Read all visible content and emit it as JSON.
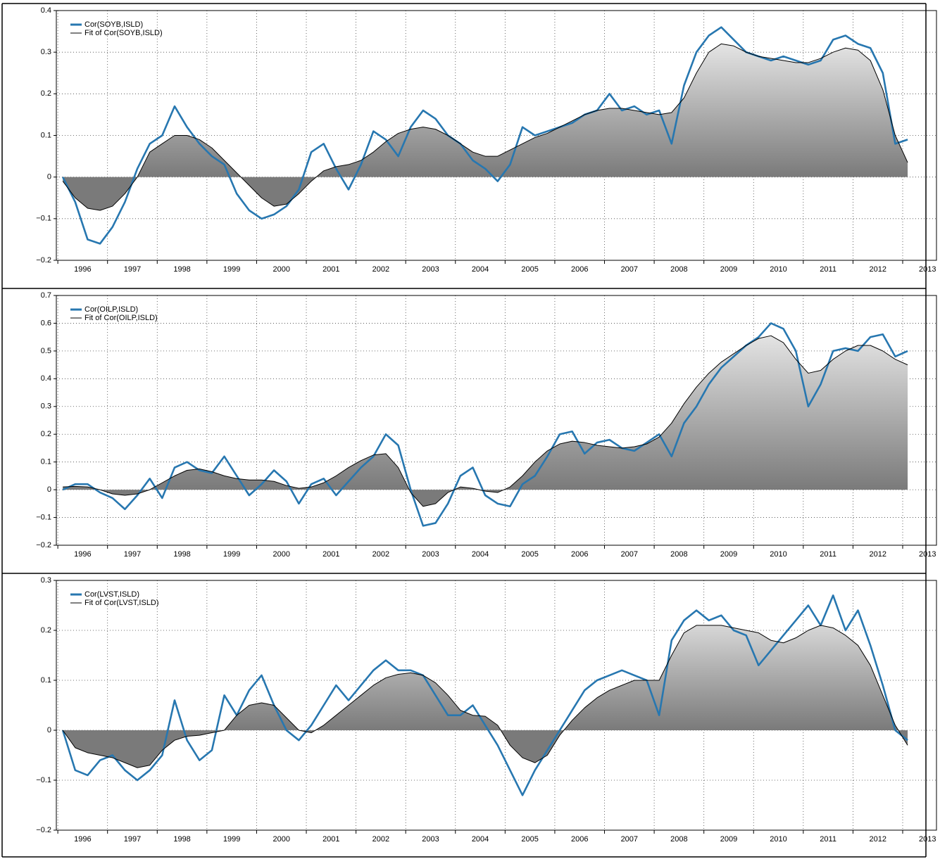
{
  "chart_data": [
    {
      "type": "line",
      "x": [
        1996.1,
        1996.35,
        1996.6,
        1996.85,
        1997.1,
        1997.35,
        1997.6,
        1997.85,
        1998.1,
        1998.35,
        1998.6,
        1998.85,
        1999.1,
        1999.35,
        1999.6,
        1999.85,
        2000.1,
        2000.35,
        2000.6,
        2000.85,
        2001.1,
        2001.35,
        2001.6,
        2001.85,
        2002.1,
        2002.35,
        2002.6,
        2002.85,
        2003.1,
        2003.35,
        2003.6,
        2003.85,
        2004.1,
        2004.35,
        2004.6,
        2004.85,
        2005.1,
        2005.35,
        2005.6,
        2005.85,
        2006.1,
        2006.35,
        2006.6,
        2006.85,
        2007.1,
        2007.35,
        2007.6,
        2007.85,
        2008.1,
        2008.35,
        2008.6,
        2008.85,
        2009.1,
        2009.35,
        2009.6,
        2009.85,
        2010.1,
        2010.35,
        2010.6,
        2010.85,
        2011.1,
        2011.35,
        2011.6,
        2011.85,
        2012.1,
        2012.35,
        2012.6,
        2012.85,
        2013.1
      ],
      "series": [
        {
          "name": "Cor(SOYB,ISLD)",
          "color": "#2777b0",
          "values": [
            0.0,
            -0.06,
            -0.15,
            -0.16,
            -0.12,
            -0.06,
            0.02,
            0.08,
            0.1,
            0.17,
            0.12,
            0.08,
            0.05,
            0.03,
            -0.04,
            -0.08,
            -0.1,
            -0.09,
            -0.07,
            -0.03,
            0.06,
            0.08,
            0.02,
            -0.03,
            0.03,
            0.11,
            0.09,
            0.05,
            0.12,
            0.16,
            0.14,
            0.1,
            0.08,
            0.04,
            0.02,
            -0.01,
            0.03,
            0.12,
            0.1,
            0.11,
            0.12,
            0.13,
            0.15,
            0.16,
            0.2,
            0.16,
            0.17,
            0.15,
            0.16,
            0.08,
            0.22,
            0.3,
            0.34,
            0.36,
            0.33,
            0.3,
            0.29,
            0.28,
            0.29,
            0.28,
            0.27,
            0.28,
            0.33,
            0.34,
            0.32,
            0.31,
            0.25,
            0.08,
            0.09
          ]
        },
        {
          "name": "Fit of Cor(SOYB,ISLD)",
          "color": "#000000",
          "fill": true,
          "values": [
            -0.01,
            -0.05,
            -0.075,
            -0.08,
            -0.07,
            -0.04,
            0.0,
            0.06,
            0.08,
            0.1,
            0.1,
            0.09,
            0.07,
            0.04,
            0.01,
            -0.02,
            -0.05,
            -0.07,
            -0.065,
            -0.04,
            -0.01,
            0.015,
            0.025,
            0.03,
            0.04,
            0.06,
            0.085,
            0.105,
            0.115,
            0.12,
            0.115,
            0.1,
            0.08,
            0.06,
            0.05,
            0.05,
            0.065,
            0.08,
            0.095,
            0.105,
            0.12,
            0.135,
            0.15,
            0.16,
            0.165,
            0.165,
            0.16,
            0.155,
            0.15,
            0.155,
            0.19,
            0.25,
            0.3,
            0.32,
            0.315,
            0.3,
            0.29,
            0.285,
            0.28,
            0.275,
            0.275,
            0.285,
            0.3,
            0.31,
            0.305,
            0.28,
            0.21,
            0.1,
            0.035
          ]
        }
      ],
      "xlim": [
        1995.97,
        2013.68
      ],
      "ylim": [
        -0.2,
        0.4
      ],
      "xticks": [
        {
          "value": 1996,
          "label": "1996"
        },
        {
          "value": 1997,
          "label": "1997"
        },
        {
          "value": 1998,
          "label": "1998"
        },
        {
          "value": 1999,
          "label": "1999"
        },
        {
          "value": 2000,
          "label": "2000"
        },
        {
          "value": 2001,
          "label": "2001"
        },
        {
          "value": 2002,
          "label": "2002"
        },
        {
          "value": 2003,
          "label": "2003"
        },
        {
          "value": 2004,
          "label": "2004"
        },
        {
          "value": 2005,
          "label": "2005"
        },
        {
          "value": 2006,
          "label": "2006"
        },
        {
          "value": 2007,
          "label": "2007"
        },
        {
          "value": 2008,
          "label": "2008"
        },
        {
          "value": 2009,
          "label": "2009"
        },
        {
          "value": 2010,
          "label": "2010"
        },
        {
          "value": 2011,
          "label": "2011"
        },
        {
          "value": 2012,
          "label": "2012"
        },
        {
          "value": 2013,
          "label": "2013"
        }
      ],
      "yticks": [
        -0.2,
        -0.1,
        0,
        0.1,
        0.2,
        0.3,
        0.4
      ],
      "grid": true,
      "legend": "upper left"
    },
    {
      "type": "line",
      "x": [
        1996.1,
        1996.35,
        1996.6,
        1996.85,
        1997.1,
        1997.35,
        1997.6,
        1997.85,
        1998.1,
        1998.35,
        1998.6,
        1998.85,
        1999.1,
        1999.35,
        1999.6,
        1999.85,
        2000.1,
        2000.35,
        2000.6,
        2000.85,
        2001.1,
        2001.35,
        2001.6,
        2001.85,
        2002.1,
        2002.35,
        2002.6,
        2002.85,
        2003.1,
        2003.35,
        2003.6,
        2003.85,
        2004.1,
        2004.35,
        2004.6,
        2004.85,
        2005.1,
        2005.35,
        2005.6,
        2005.85,
        2006.1,
        2006.35,
        2006.6,
        2006.85,
        2007.1,
        2007.35,
        2007.6,
        2007.85,
        2008.1,
        2008.35,
        2008.6,
        2008.85,
        2009.1,
        2009.35,
        2009.6,
        2009.85,
        2010.1,
        2010.35,
        2010.6,
        2010.85,
        2011.1,
        2011.35,
        2011.6,
        2011.85,
        2012.1,
        2012.35,
        2012.6,
        2012.85,
        2013.1
      ],
      "series": [
        {
          "name": "Cor(OILP,ISLD)",
          "color": "#2777b0",
          "values": [
            0.0,
            0.02,
            0.02,
            -0.01,
            -0.03,
            -0.07,
            -0.02,
            0.04,
            -0.03,
            0.08,
            0.1,
            0.07,
            0.06,
            0.12,
            0.05,
            -0.02,
            0.02,
            0.07,
            0.03,
            -0.05,
            0.02,
            0.04,
            -0.02,
            0.03,
            0.08,
            0.12,
            0.2,
            0.16,
            0.0,
            -0.13,
            -0.12,
            -0.05,
            0.05,
            0.08,
            -0.02,
            -0.05,
            -0.06,
            0.02,
            0.05,
            0.12,
            0.2,
            0.21,
            0.13,
            0.17,
            0.18,
            0.15,
            0.14,
            0.17,
            0.2,
            0.12,
            0.24,
            0.3,
            0.38,
            0.44,
            0.48,
            0.52,
            0.55,
            0.6,
            0.58,
            0.5,
            0.3,
            0.38,
            0.5,
            0.51,
            0.5,
            0.55,
            0.56,
            0.48,
            0.5
          ]
        },
        {
          "name": "Fit of Cor(OILP,ISLD)",
          "color": "#000000",
          "fill": true,
          "values": [
            0.01,
            0.012,
            0.01,
            0.0,
            -0.015,
            -0.02,
            -0.015,
            0.0,
            0.025,
            0.05,
            0.07,
            0.075,
            0.065,
            0.05,
            0.04,
            0.035,
            0.035,
            0.03,
            0.015,
            0.005,
            0.01,
            0.025,
            0.05,
            0.08,
            0.105,
            0.125,
            0.13,
            0.08,
            -0.01,
            -0.06,
            -0.05,
            -0.01,
            0.01,
            0.005,
            -0.005,
            -0.01,
            0.01,
            0.05,
            0.1,
            0.14,
            0.165,
            0.175,
            0.17,
            0.16,
            0.155,
            0.15,
            0.155,
            0.165,
            0.19,
            0.24,
            0.31,
            0.37,
            0.42,
            0.46,
            0.49,
            0.52,
            0.545,
            0.555,
            0.53,
            0.47,
            0.42,
            0.43,
            0.47,
            0.5,
            0.52,
            0.52,
            0.5,
            0.47,
            0.45
          ]
        }
      ],
      "xlim": [
        1995.97,
        2013.68
      ],
      "ylim": [
        -0.2,
        0.7
      ],
      "xticks": [
        {
          "value": 1996,
          "label": "1996"
        },
        {
          "value": 1997,
          "label": "1997"
        },
        {
          "value": 1998,
          "label": "1998"
        },
        {
          "value": 1999,
          "label": "1999"
        },
        {
          "value": 2000,
          "label": "2000"
        },
        {
          "value": 2001,
          "label": "2001"
        },
        {
          "value": 2002,
          "label": "2002"
        },
        {
          "value": 2003,
          "label": "2003"
        },
        {
          "value": 2004,
          "label": "2004"
        },
        {
          "value": 2005,
          "label": "2005"
        },
        {
          "value": 2006,
          "label": "2006"
        },
        {
          "value": 2007,
          "label": "2007"
        },
        {
          "value": 2008,
          "label": "2008"
        },
        {
          "value": 2009,
          "label": "2009"
        },
        {
          "value": 2010,
          "label": "2010"
        },
        {
          "value": 2011,
          "label": "2011"
        },
        {
          "value": 2012,
          "label": "2012"
        },
        {
          "value": 2013,
          "label": "2013"
        }
      ],
      "yticks": [
        -0.2,
        -0.1,
        0,
        0.1,
        0.2,
        0.3,
        0.4,
        0.5,
        0.6,
        0.7
      ],
      "grid": true,
      "legend": "upper left"
    },
    {
      "type": "line",
      "x": [
        1996.1,
        1996.35,
        1996.6,
        1996.85,
        1997.1,
        1997.35,
        1997.6,
        1997.85,
        1998.1,
        1998.35,
        1998.6,
        1998.85,
        1999.1,
        1999.35,
        1999.6,
        1999.85,
        2000.1,
        2000.35,
        2000.6,
        2000.85,
        2001.1,
        2001.35,
        2001.6,
        2001.85,
        2002.1,
        2002.35,
        2002.6,
        2002.85,
        2003.1,
        2003.35,
        2003.6,
        2003.85,
        2004.1,
        2004.35,
        2004.6,
        2004.85,
        2005.1,
        2005.35,
        2005.6,
        2005.85,
        2006.1,
        2006.35,
        2006.6,
        2006.85,
        2007.1,
        2007.35,
        2007.6,
        2007.85,
        2008.1,
        2008.35,
        2008.6,
        2008.85,
        2009.1,
        2009.35,
        2009.6,
        2009.85,
        2010.1,
        2010.35,
        2010.6,
        2010.85,
        2011.1,
        2011.35,
        2011.6,
        2011.85,
        2012.1,
        2012.35,
        2012.6,
        2012.85,
        2013.1
      ],
      "series": [
        {
          "name": "Cor(LVST,ISLD)",
          "color": "#2777b0",
          "values": [
            0.0,
            -0.08,
            -0.09,
            -0.06,
            -0.05,
            -0.08,
            -0.1,
            -0.08,
            -0.05,
            0.06,
            -0.02,
            -0.06,
            -0.04,
            0.07,
            0.03,
            0.08,
            0.11,
            0.05,
            0.0,
            -0.02,
            0.01,
            0.05,
            0.09,
            0.06,
            0.09,
            0.12,
            0.14,
            0.12,
            0.12,
            0.11,
            0.07,
            0.03,
            0.03,
            0.05,
            0.01,
            -0.03,
            -0.08,
            -0.13,
            -0.08,
            -0.04,
            0.0,
            0.04,
            0.08,
            0.1,
            0.11,
            0.12,
            0.11,
            0.1,
            0.03,
            0.18,
            0.22,
            0.24,
            0.22,
            0.23,
            0.2,
            0.19,
            0.13,
            0.16,
            0.19,
            0.22,
            0.25,
            0.21,
            0.27,
            0.2,
            0.24,
            0.17,
            0.09,
            0.0,
            -0.02
          ]
        },
        {
          "name": "Fit of Cor(LVST,ISLD)",
          "color": "#000000",
          "fill": true,
          "values": [
            0.0,
            -0.035,
            -0.045,
            -0.05,
            -0.055,
            -0.065,
            -0.075,
            -0.07,
            -0.04,
            -0.02,
            -0.012,
            -0.01,
            -0.005,
            0.0,
            0.03,
            0.05,
            0.055,
            0.05,
            0.025,
            0.0,
            -0.005,
            0.01,
            0.03,
            0.05,
            0.07,
            0.09,
            0.105,
            0.112,
            0.115,
            0.11,
            0.095,
            0.07,
            0.04,
            0.03,
            0.028,
            0.01,
            -0.03,
            -0.055,
            -0.065,
            -0.05,
            -0.01,
            0.02,
            0.045,
            0.065,
            0.08,
            0.09,
            0.1,
            0.1,
            0.1,
            0.15,
            0.195,
            0.21,
            0.21,
            0.21,
            0.205,
            0.2,
            0.195,
            0.18,
            0.175,
            0.185,
            0.2,
            0.21,
            0.205,
            0.19,
            0.17,
            0.13,
            0.07,
            0.01,
            -0.03
          ]
        }
      ],
      "xlim": [
        1995.97,
        2013.68
      ],
      "ylim": [
        -0.2,
        0.3
      ],
      "xticks": [
        {
          "value": 1996,
          "label": "1996"
        },
        {
          "value": 1997,
          "label": "1997"
        },
        {
          "value": 1998,
          "label": "1998"
        },
        {
          "value": 1999,
          "label": "1999"
        },
        {
          "value": 2000,
          "label": "2000"
        },
        {
          "value": 2001,
          "label": "2001"
        },
        {
          "value": 2002,
          "label": "2002"
        },
        {
          "value": 2003,
          "label": "2003"
        },
        {
          "value": 2004,
          "label": "2004"
        },
        {
          "value": 2005,
          "label": "2005"
        },
        {
          "value": 2006,
          "label": "2006"
        },
        {
          "value": 2007,
          "label": "2007"
        },
        {
          "value": 2008,
          "label": "2008"
        },
        {
          "value": 2009,
          "label": "2009"
        },
        {
          "value": 2010,
          "label": "2010"
        },
        {
          "value": 2011,
          "label": "2011"
        },
        {
          "value": 2012,
          "label": "2012"
        },
        {
          "value": 2013,
          "label": "2013"
        }
      ],
      "yticks": [
        -0.2,
        -0.1,
        0,
        0.1,
        0.2,
        0.3
      ],
      "grid": true,
      "legend": "upper left"
    }
  ]
}
